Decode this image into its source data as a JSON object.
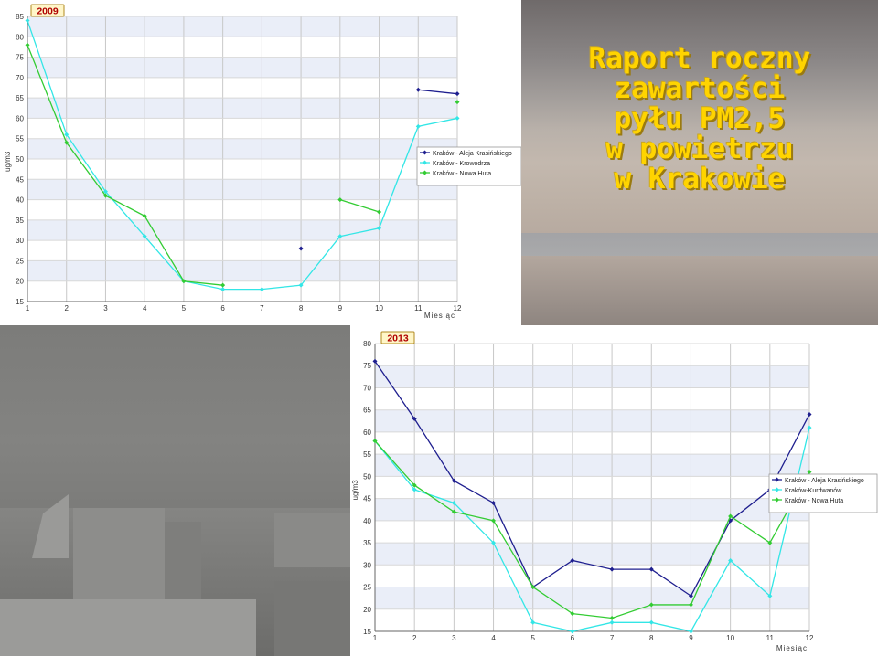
{
  "title": {
    "lines": [
      "Raport roczny",
      "zawartości",
      "pyłu PM2,5",
      "w powietrzu",
      "w Krakowie"
    ],
    "color": "#ffd400"
  },
  "chart_data": [
    {
      "type": "line",
      "badge": "2009",
      "ylabel": "ug/m3",
      "xlabel": "Miesiąc",
      "x": [
        1,
        2,
        3,
        4,
        5,
        6,
        7,
        8,
        9,
        10,
        11,
        12
      ],
      "ylim": [
        15,
        85
      ],
      "yticks": [
        15,
        20,
        25,
        30,
        35,
        40,
        45,
        50,
        55,
        60,
        65,
        70,
        75,
        80,
        85
      ],
      "grid": true,
      "legend_position": "right",
      "series": [
        {
          "name": "Kraków - Aleja Krasińskiego",
          "color": "#1f1f8f",
          "values": [
            null,
            null,
            null,
            null,
            null,
            null,
            null,
            28,
            null,
            null,
            67,
            66
          ]
        },
        {
          "name": "Kraków - Krowodrza",
          "color": "#33e6e6",
          "values": [
            84,
            56,
            42,
            31,
            20,
            18,
            18,
            19,
            31,
            33,
            58,
            60
          ]
        },
        {
          "name": "Kraków - Nowa Huta",
          "color": "#33cc33",
          "values": [
            78,
            54,
            41,
            36,
            20,
            19,
            null,
            null,
            40,
            37,
            null,
            64
          ]
        }
      ]
    },
    {
      "type": "line",
      "badge": "2013",
      "ylabel": "ug/m3",
      "xlabel": "Miesiąc",
      "x": [
        1,
        2,
        3,
        4,
        5,
        6,
        7,
        8,
        9,
        10,
        11,
        12
      ],
      "ylim": [
        15,
        80
      ],
      "yticks": [
        15,
        20,
        25,
        30,
        35,
        40,
        45,
        50,
        55,
        60,
        65,
        70,
        75,
        80
      ],
      "grid": true,
      "legend_position": "right",
      "series": [
        {
          "name": "Kraków - Aleja Krasińskiego",
          "color": "#1f1f8f",
          "values": [
            76,
            63,
            49,
            44,
            25,
            31,
            29,
            29,
            23,
            40,
            47,
            64
          ]
        },
        {
          "name": "Kraków-Kurdwanów",
          "color": "#33e6e6",
          "values": [
            58,
            47,
            44,
            35,
            17,
            15,
            17,
            17,
            15,
            31,
            23,
            61
          ]
        },
        {
          "name": "Kraków - Nowa Huta",
          "color": "#33cc33",
          "values": [
            58,
            48,
            42,
            40,
            25,
            19,
            18,
            21,
            21,
            41,
            35,
            51
          ]
        }
      ]
    }
  ]
}
